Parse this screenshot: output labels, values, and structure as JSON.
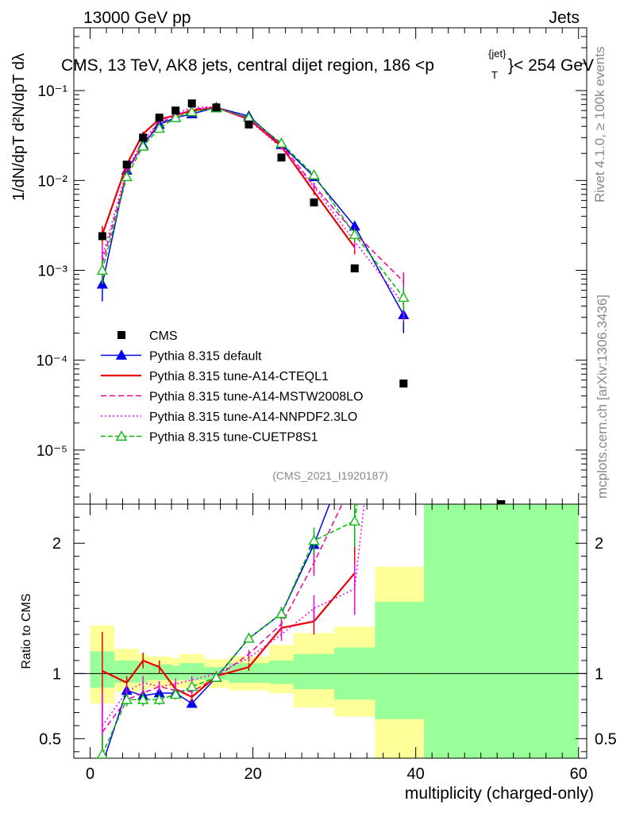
{
  "header": {
    "left": "13000 GeV pp",
    "right": "Jets"
  },
  "side_text": {
    "rivet": "Rivet 4.1.0, ≥ 100k events",
    "mcplots": "mcplots.cern.ch [arXiv:1306.3436]"
  },
  "chart_data": {
    "type": "line",
    "title": "CMS, 13 TeV, AK8 jets, central dijet region, 186 <p",
    "title_sup": "{jet}",
    "title_sub": "T",
    "title_end": "}< 254 GeV",
    "ylabel": "1/dN/dpT  d²N/dpT dλ",
    "xlabel": "multiplicity (charged-only)",
    "ratio_ylabel": "Ratio to CMS",
    "watermark": "(CMS_2021_I1920187)",
    "xlim": [
      -2,
      61
    ],
    "ylim_log": [
      2.5e-06,
      0.5
    ],
    "ratio_ylim": [
      0.35,
      2.3
    ],
    "x_ticks": [
      "0",
      "20",
      "40",
      "60"
    ],
    "y_ticks": [
      "10⁻¹",
      "10⁻²",
      "10⁻³",
      "10⁻⁴",
      "10⁻⁵"
    ],
    "ratio_ticks": [
      "2",
      "1",
      "0.5"
    ],
    "bins": [
      [
        0,
        3
      ],
      [
        3,
        6
      ],
      [
        6,
        7
      ],
      [
        7,
        10
      ],
      [
        10,
        11
      ],
      [
        11,
        14
      ],
      [
        14,
        17
      ],
      [
        17,
        22
      ],
      [
        22,
        25
      ],
      [
        25,
        30
      ],
      [
        30,
        35
      ],
      [
        35,
        41
      ],
      [
        41,
        60
      ]
    ],
    "band_yellow": [
      [
        0.77,
        1.37
      ],
      [
        0.86,
        1.19
      ],
      [
        0.87,
        1.15
      ],
      [
        0.89,
        1.13
      ],
      [
        0.89,
        1.12
      ],
      [
        0.89,
        1.15
      ],
      [
        0.89,
        1.11
      ],
      [
        0.87,
        1.13
      ],
      [
        0.85,
        1.22
      ],
      [
        0.74,
        1.31
      ],
      [
        0.67,
        1.36
      ],
      [
        0.3,
        1.82
      ],
      [
        0.3,
        3.0
      ]
    ],
    "band_green": [
      [
        0.89,
        1.17
      ],
      [
        0.93,
        1.1
      ],
      [
        0.93,
        1.09
      ],
      [
        0.95,
        1.07
      ],
      [
        0.95,
        1.06
      ],
      [
        0.95,
        1.08
      ],
      [
        0.95,
        1.05
      ],
      [
        0.93,
        1.08
      ],
      [
        0.92,
        1.1
      ],
      [
        0.88,
        1.15
      ],
      [
        0.8,
        1.2
      ],
      [
        0.65,
        1.55
      ],
      [
        0.3,
        3.0
      ]
    ],
    "legend": [
      "CMS",
      "Pythia 8.315 default",
      "Pythia 8.315 tune-A14-CTEQL1",
      "Pythia 8.315 tune-A14-MSTW2008LO",
      "Pythia 8.315 tune-A14-NNPDF2.3LO",
      "Pythia 8.315 tune-CUETP8S1"
    ],
    "cms": {
      "name": "CMS",
      "x": [
        1.5,
        4.5,
        6.5,
        8.5,
        10.5,
        12.5,
        15.5,
        19.5,
        23.5,
        27.5,
        32.5,
        38.5,
        50.5
      ],
      "y": [
        0.0024,
        0.015,
        0.03,
        0.05,
        0.06,
        0.072,
        0.065,
        0.042,
        0.018,
        0.0057,
        0.00105,
        5.5e-05,
        2.5e-06
      ]
    },
    "series": [
      {
        "name": "Pythia 8.315 default",
        "color": "#0000ee",
        "dash": "",
        "marker": "tri-fill",
        "x": [
          1.5,
          4.5,
          6.5,
          8.5,
          10.5,
          12.5,
          15.5,
          19.5,
          23.5,
          27.5,
          32.5,
          38.5
        ],
        "y": [
          0.0007,
          0.013,
          0.025,
          0.042,
          0.05,
          0.055,
          0.065,
          0.052,
          0.025,
          0.011,
          0.0031,
          0.00032
        ],
        "err": [
          0.00025,
          0.001,
          0.002,
          0.002,
          0.002,
          0.002,
          0.002,
          0.002,
          0.001,
          0.0007,
          0.0004,
          0.00012
        ],
        "ratio": [
          0.3,
          0.87,
          0.83,
          0.85,
          0.85,
          0.77,
          0.97,
          1.27,
          1.46,
          1.99,
          2.8,
          5.0
        ],
        "ratio_err": [
          0.1,
          0.04,
          0.04,
          0.03,
          0.03,
          0.03,
          0.02,
          0.03,
          0.05,
          0.08,
          0.15,
          1.0
        ]
      },
      {
        "name": "Pythia 8.315 tune-A14-CTEQL1",
        "color": "#ee0000",
        "dash": "",
        "marker": "none",
        "x": [
          1.5,
          4.5,
          6.5,
          8.5,
          10.5,
          12.5,
          15.5,
          19.5,
          23.5,
          27.5,
          32.5
        ],
        "y": [
          0.0025,
          0.015,
          0.033,
          0.048,
          0.053,
          0.06,
          0.065,
          0.048,
          0.024,
          0.0075,
          0.0018
        ],
        "err": [
          0.0006,
          0.001,
          0.002,
          0.002,
          0.002,
          0.002,
          0.002,
          0.002,
          0.001,
          0.0006,
          0.0003
        ],
        "ratio": [
          1.02,
          0.93,
          1.1,
          1.05,
          0.88,
          0.82,
          0.98,
          1.05,
          1.35,
          1.4,
          1.77
        ],
        "ratio_err": [
          0.3,
          0.05,
          0.06,
          0.05,
          0.04,
          0.04,
          0.02,
          0.03,
          0.05,
          0.1,
          0.25
        ]
      },
      {
        "name": "Pythia 8.315 tune-A14-MSTW2008LO",
        "color": "#ee0099",
        "dash": "7,4",
        "marker": "none",
        "x": [
          1.5,
          4.5,
          6.5,
          8.5,
          10.5,
          12.5,
          15.5,
          19.5,
          23.5,
          27.5,
          32.5,
          38.5
        ],
        "y": [
          0.0012,
          0.012,
          0.026,
          0.043,
          0.053,
          0.062,
          0.065,
          0.049,
          0.025,
          0.0088,
          0.0026,
          0.00075
        ],
        "err": [
          0.0004,
          0.001,
          0.002,
          0.002,
          0.002,
          0.002,
          0.002,
          0.002,
          0.001,
          0.0007,
          0.0004,
          0.0002
        ],
        "ratio": [
          0.55,
          0.8,
          0.85,
          0.9,
          0.87,
          0.86,
          0.97,
          1.15,
          1.38,
          1.85,
          2.5,
          5.0
        ],
        "ratio_err": [
          0.2,
          0.05,
          0.05,
          0.04,
          0.04,
          0.03,
          0.02,
          0.03,
          0.05,
          0.1,
          0.2,
          1.0
        ]
      },
      {
        "name": "Pythia 8.315 tune-A14-NNPDF2.3LO",
        "color": "#ee00ee",
        "dash": "2,3",
        "marker": "none",
        "x": [
          1.5,
          4.5,
          6.5,
          8.5,
          10.5,
          12.5,
          15.5,
          19.5,
          23.5,
          27.5,
          32.5,
          38.5
        ],
        "y": [
          0.0014,
          0.013,
          0.028,
          0.045,
          0.055,
          0.065,
          0.066,
          0.047,
          0.023,
          0.0085,
          0.0021,
          0.00042
        ],
        "err": [
          0.0005,
          0.001,
          0.002,
          0.002,
          0.002,
          0.002,
          0.002,
          0.002,
          0.001,
          0.0007,
          0.0004,
          0.00015
        ],
        "ratio": [
          0.6,
          0.86,
          0.93,
          0.9,
          0.92,
          0.95,
          1.0,
          1.12,
          1.3,
          1.5,
          1.65,
          5.0
        ],
        "ratio_err": [
          0.25,
          0.05,
          0.05,
          0.04,
          0.04,
          0.03,
          0.02,
          0.03,
          0.05,
          0.1,
          0.2,
          1.0
        ]
      },
      {
        "name": "Pythia 8.315 tune-CUETP8S1",
        "color": "#00bb00",
        "dash": "6,3",
        "marker": "tri-open",
        "x": [
          1.5,
          4.5,
          6.5,
          8.5,
          10.5,
          12.5,
          15.5,
          19.5,
          23.5,
          27.5,
          32.5,
          38.5
        ],
        "y": [
          0.001,
          0.011,
          0.024,
          0.038,
          0.05,
          0.058,
          0.064,
          0.05,
          0.026,
          0.0115,
          0.0025,
          0.0005
        ],
        "err": [
          0.0003,
          0.001,
          0.002,
          0.002,
          0.002,
          0.002,
          0.002,
          0.002,
          0.001,
          0.0007,
          0.0004,
          0.00015
        ],
        "ratio": [
          0.38,
          0.8,
          0.8,
          0.8,
          0.84,
          0.9,
          0.97,
          1.27,
          1.46,
          2.02,
          2.17,
          5.0
        ],
        "ratio_err": [
          0.15,
          0.05,
          0.05,
          0.04,
          0.04,
          0.03,
          0.02,
          0.03,
          0.05,
          0.1,
          0.2,
          1.0
        ]
      }
    ]
  }
}
